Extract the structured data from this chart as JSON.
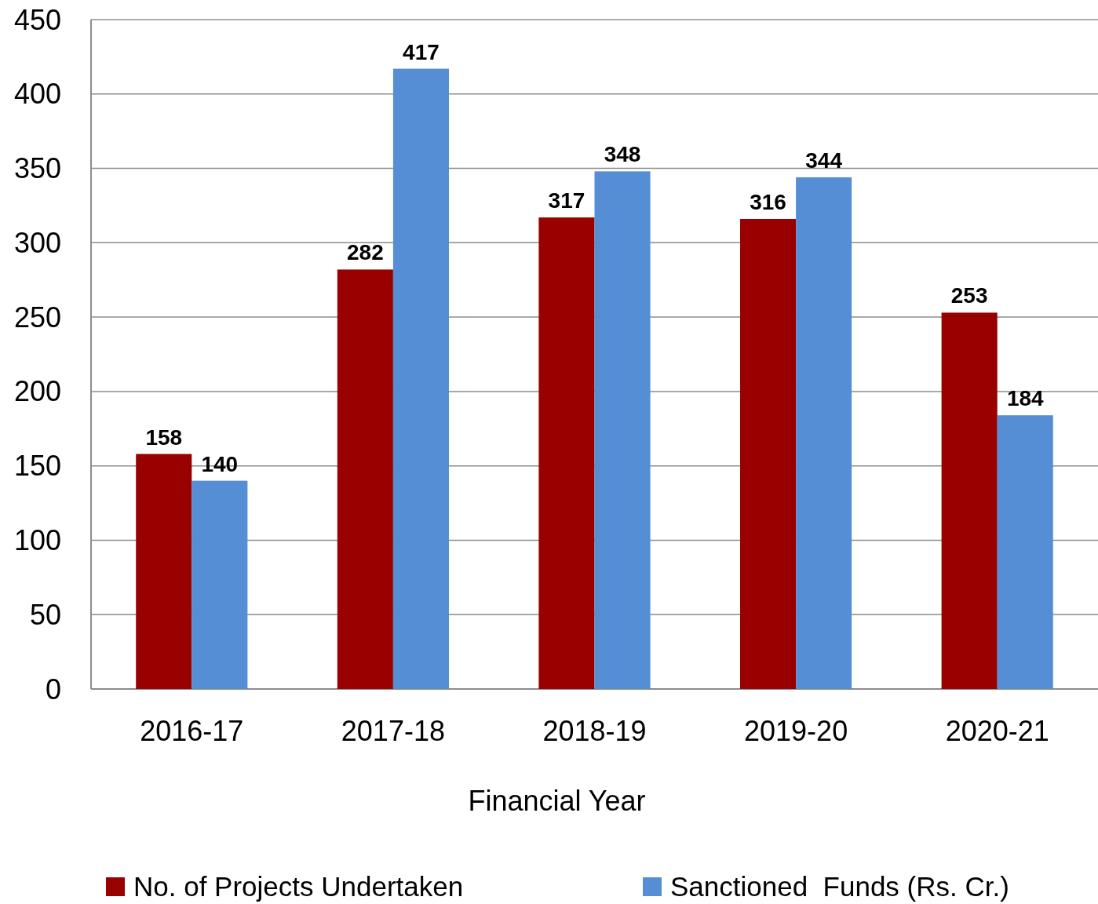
{
  "chart_data": {
    "type": "bar",
    "categories": [
      "2016-17",
      "2017-18",
      "2018-19",
      "2019-20",
      "2020-21"
    ],
    "series": [
      {
        "name": "No. of Projects Undertaken",
        "color": "#990000",
        "values": [
          158,
          282,
          317,
          316,
          253
        ]
      },
      {
        "name": "Sanctioned  Funds (Rs. Cr.)",
        "color": "#558ed5",
        "values": [
          140,
          417,
          348,
          344,
          184
        ]
      }
    ],
    "xlabel": "Financial Year",
    "ylim": [
      0,
      450
    ],
    "yticks": [
      0,
      50,
      100,
      150,
      200,
      250,
      300,
      350,
      400,
      450
    ],
    "grid": "y",
    "legend": "bottom",
    "data_labels": true
  }
}
